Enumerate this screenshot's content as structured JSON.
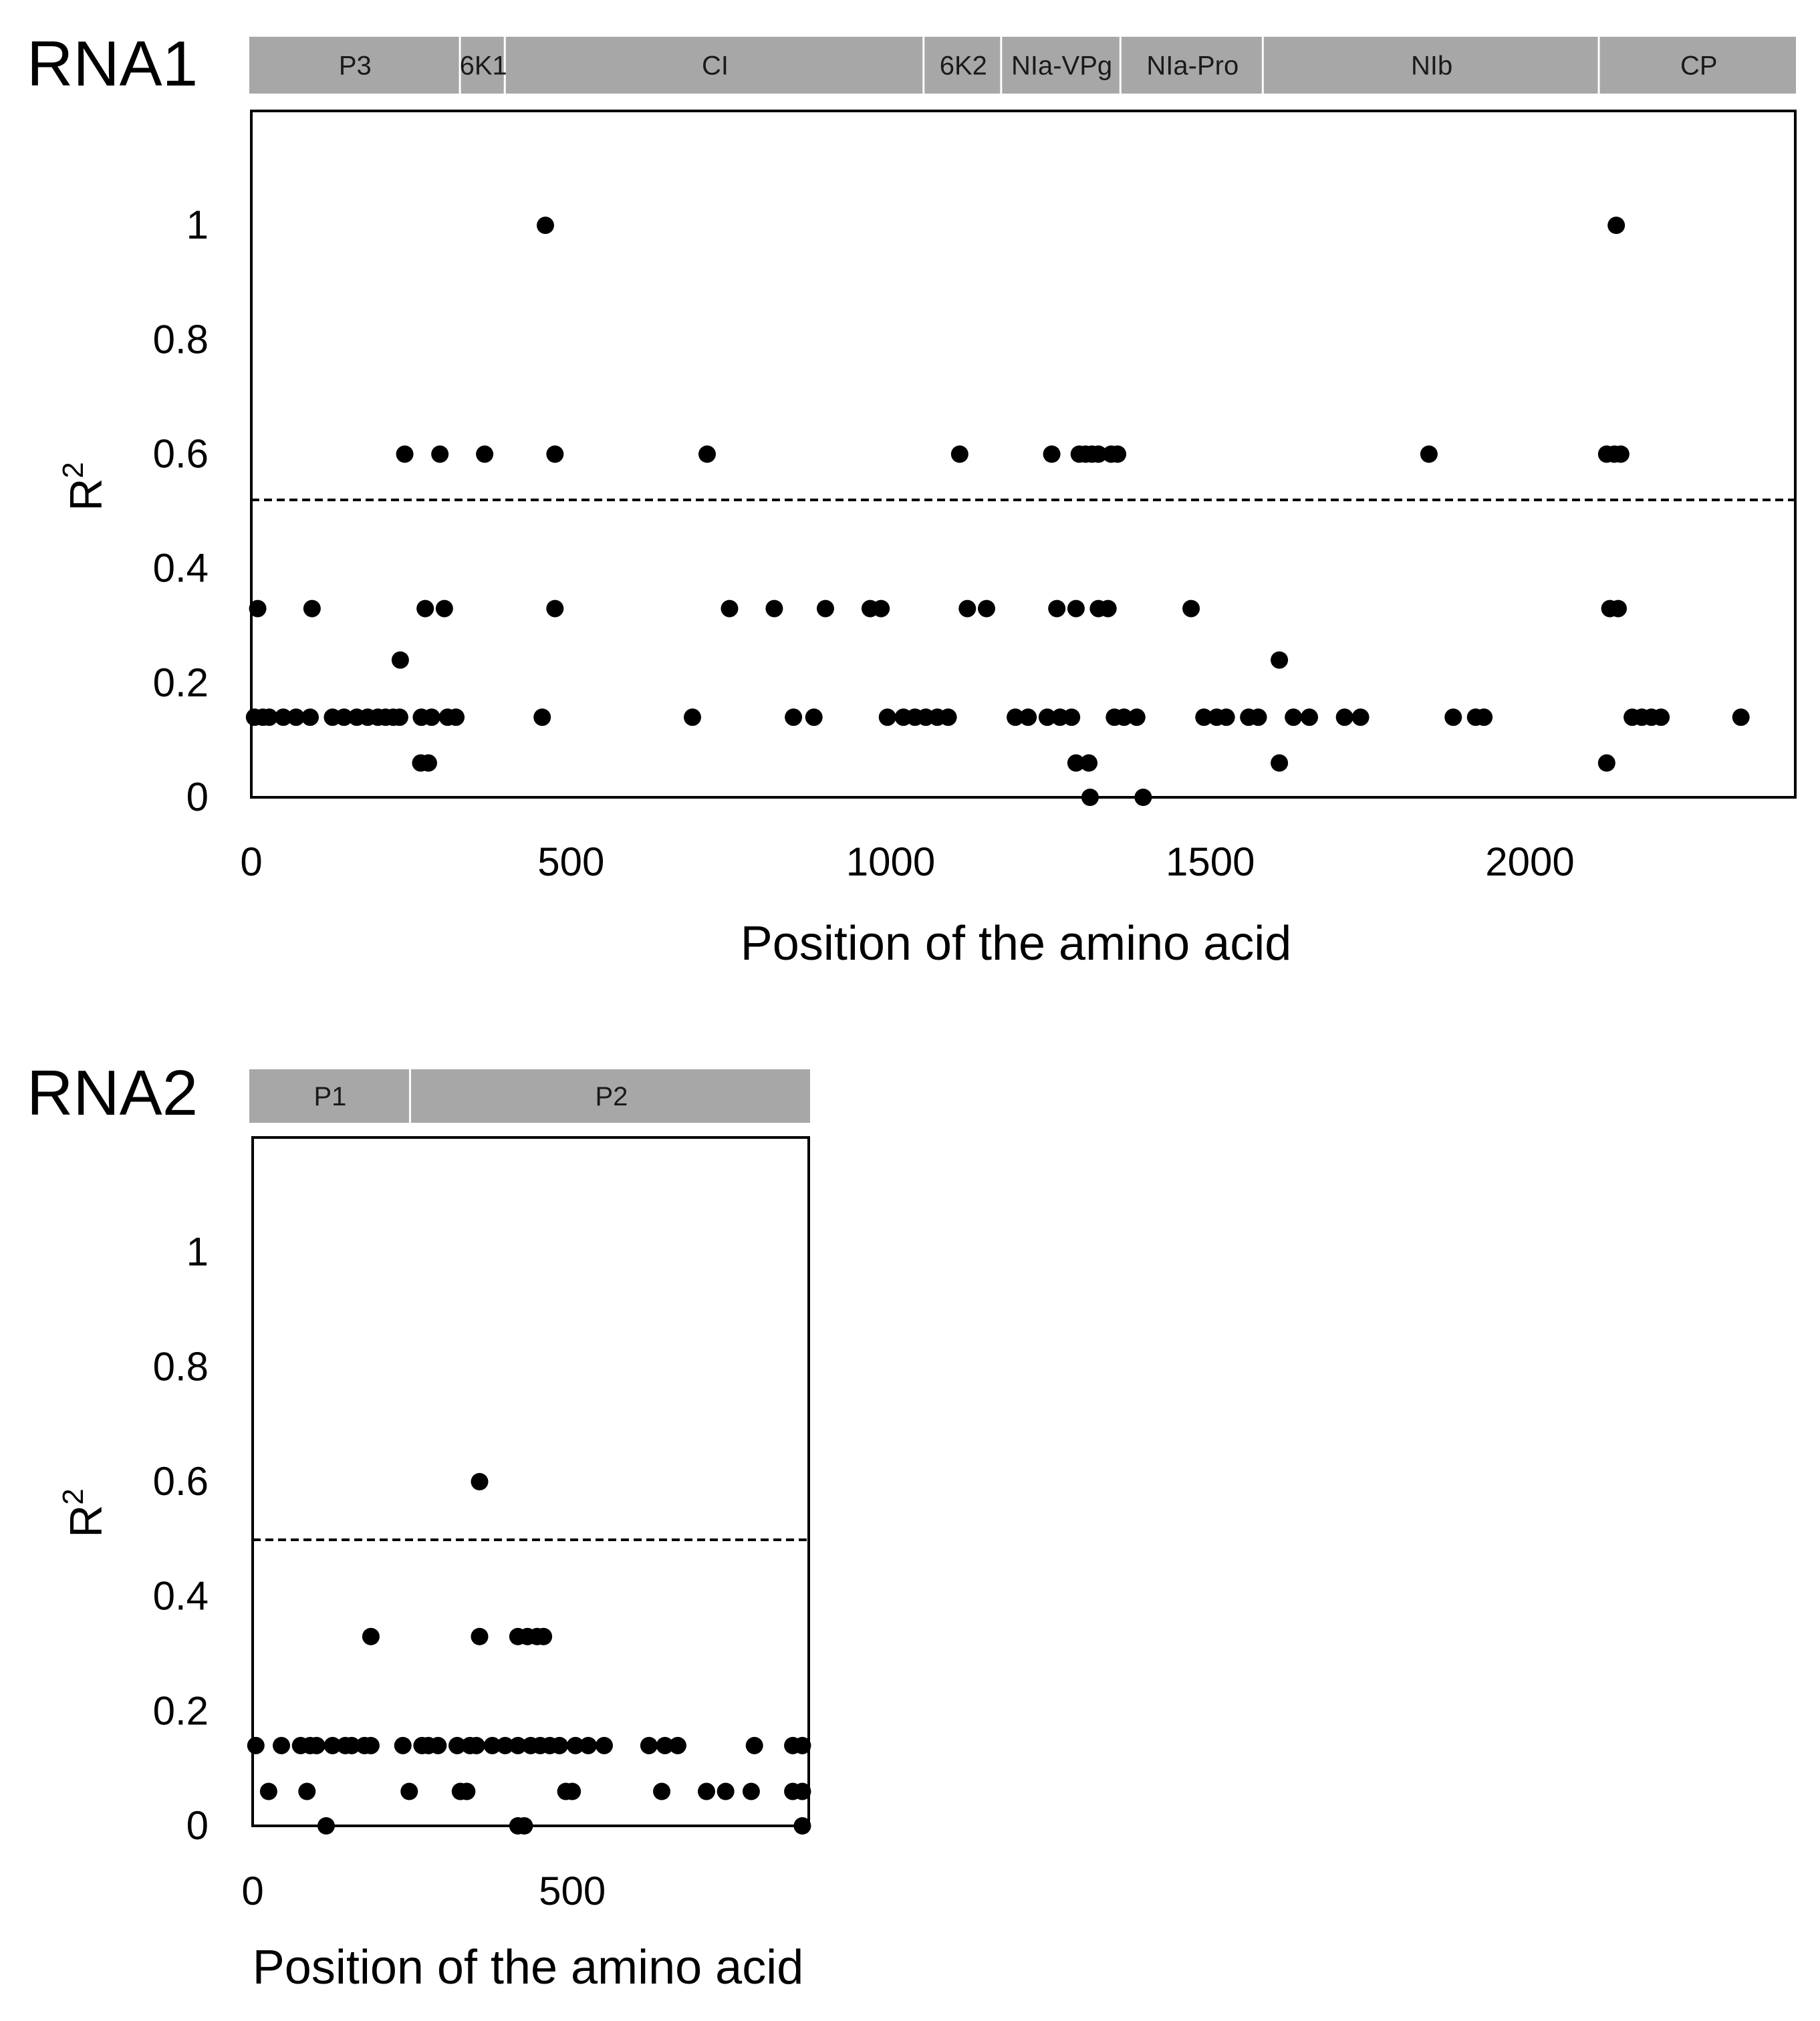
{
  "colors": {
    "band_fill": "#a7a7a7",
    "marker": "#000000",
    "axis": "#000000",
    "threshold": "#000000"
  },
  "chart_data": [
    {
      "type": "scatter",
      "title": "RNA1",
      "xlabel": "Position of the amino acid",
      "ylabel": "R",
      "ylabel_superscript": "2",
      "xlim": [
        0,
        2415
      ],
      "ylim": [
        0,
        1.2
      ],
      "xticks": [
        "0",
        "500",
        "1000",
        "1500",
        "2000"
      ],
      "yticks": [
        "0",
        "0.2",
        "0.4",
        "0.6",
        "0.8",
        "1"
      ],
      "threshold": 0.52,
      "grid": false,
      "legend": "none",
      "regions": [
        {
          "label": "P3",
          "start": 0,
          "end": 330
        },
        {
          "label": "6K1",
          "start": 330,
          "end": 400
        },
        {
          "label": "CI",
          "start": 400,
          "end": 1053
        },
        {
          "label": "6K2",
          "start": 1053,
          "end": 1174
        },
        {
          "label": "NIa-VPg",
          "start": 1174,
          "end": 1360
        },
        {
          "label": "NIa-Pro",
          "start": 1360,
          "end": 1582
        },
        {
          "label": "NIb",
          "start": 1582,
          "end": 2106
        },
        {
          "label": "CP",
          "start": 2106,
          "end": 2415
        }
      ],
      "points": [
        [
          10,
          0.33
        ],
        [
          95,
          0.33
        ],
        [
          240,
          0.6
        ],
        [
          295,
          0.6
        ],
        [
          365,
          0.6
        ],
        [
          460,
          1.0
        ],
        [
          475,
          0.6
        ],
        [
          475,
          0.33
        ],
        [
          272,
          0.33
        ],
        [
          302,
          0.33
        ],
        [
          233,
          0.24
        ],
        [
          265,
          0.06
        ],
        [
          277,
          0.06
        ],
        [
          455,
          0.14
        ],
        [
          5,
          0.14
        ],
        [
          18,
          0.14
        ],
        [
          28,
          0.14
        ],
        [
          50,
          0.14
        ],
        [
          70,
          0.14
        ],
        [
          92,
          0.14
        ],
        [
          127,
          0.14
        ],
        [
          145,
          0.14
        ],
        [
          165,
          0.14
        ],
        [
          182,
          0.14
        ],
        [
          198,
          0.14
        ],
        [
          210,
          0.14
        ],
        [
          222,
          0.14
        ],
        [
          232,
          0.14
        ],
        [
          266,
          0.14
        ],
        [
          282,
          0.14
        ],
        [
          307,
          0.14
        ],
        [
          320,
          0.14
        ],
        [
          690,
          0.14
        ],
        [
          713,
          0.6
        ],
        [
          748,
          0.33
        ],
        [
          818,
          0.33
        ],
        [
          848,
          0.14
        ],
        [
          880,
          0.14
        ],
        [
          898,
          0.33
        ],
        [
          968,
          0.33
        ],
        [
          985,
          0.33
        ],
        [
          995,
          0.14
        ],
        [
          1020,
          0.14
        ],
        [
          1038,
          0.14
        ],
        [
          1055,
          0.14
        ],
        [
          1073,
          0.14
        ],
        [
          1090,
          0.14
        ],
        [
          1108,
          0.6
        ],
        [
          1120,
          0.33
        ],
        [
          1150,
          0.33
        ],
        [
          1195,
          0.14
        ],
        [
          1215,
          0.14
        ],
        [
          1252,
          0.6
        ],
        [
          1245,
          0.14
        ],
        [
          1265,
          0.14
        ],
        [
          1283,
          0.14
        ],
        [
          1260,
          0.33
        ],
        [
          1290,
          0.33
        ],
        [
          1295,
          0.6
        ],
        [
          1305,
          0.6
        ],
        [
          1315,
          0.6
        ],
        [
          1325,
          0.6
        ],
        [
          1345,
          0.6
        ],
        [
          1355,
          0.6
        ],
        [
          1290,
          0.06
        ],
        [
          1310,
          0.06
        ],
        [
          1312,
          0.0
        ],
        [
          1325,
          0.33
        ],
        [
          1340,
          0.33
        ],
        [
          1350,
          0.14
        ],
        [
          1365,
          0.14
        ],
        [
          1385,
          0.14
        ],
        [
          1395,
          0.0
        ],
        [
          1470,
          0.33
        ],
        [
          1490,
          0.14
        ],
        [
          1510,
          0.14
        ],
        [
          1525,
          0.14
        ],
        [
          1560,
          0.14
        ],
        [
          1575,
          0.14
        ],
        [
          1608,
          0.24
        ],
        [
          1608,
          0.06
        ],
        [
          1630,
          0.14
        ],
        [
          1655,
          0.14
        ],
        [
          1710,
          0.14
        ],
        [
          1735,
          0.14
        ],
        [
          1842,
          0.6
        ],
        [
          1880,
          0.14
        ],
        [
          1915,
          0.14
        ],
        [
          1928,
          0.14
        ],
        [
          2120,
          0.6
        ],
        [
          2132,
          0.6
        ],
        [
          2142,
          0.6
        ],
        [
          2125,
          0.33
        ],
        [
          2138,
          0.33
        ],
        [
          2135,
          1.0
        ],
        [
          2120,
          0.06
        ],
        [
          2160,
          0.14
        ],
        [
          2175,
          0.14
        ],
        [
          2190,
          0.14
        ],
        [
          2205,
          0.14
        ],
        [
          2330,
          0.14
        ]
      ]
    },
    {
      "type": "scatter",
      "title": "RNA2",
      "xlabel": "Position of the amino acid",
      "ylabel": "R",
      "ylabel_superscript": "2",
      "xlim": [
        0,
        870
      ],
      "ylim": [
        0,
        1.2
      ],
      "xticks": [
        "0",
        "500"
      ],
      "yticks": [
        "0",
        "0.2",
        "0.4",
        "0.6",
        "0.8",
        "1"
      ],
      "threshold": 0.5,
      "grid": false,
      "legend": "none",
      "regions": [
        {
          "label": "P1",
          "start": 0,
          "end": 250
        },
        {
          "label": "P2",
          "start": 250,
          "end": 870
        }
      ],
      "points": [
        [
          5,
          0.14
        ],
        [
          45,
          0.14
        ],
        [
          75,
          0.14
        ],
        [
          90,
          0.14
        ],
        [
          100,
          0.14
        ],
        [
          125,
          0.14
        ],
        [
          145,
          0.14
        ],
        [
          155,
          0.14
        ],
        [
          175,
          0.14
        ],
        [
          185,
          0.14
        ],
        [
          235,
          0.14
        ],
        [
          265,
          0.14
        ],
        [
          275,
          0.14
        ],
        [
          290,
          0.14
        ],
        [
          320,
          0.14
        ],
        [
          340,
          0.14
        ],
        [
          350,
          0.14
        ],
        [
          375,
          0.14
        ],
        [
          395,
          0.14
        ],
        [
          415,
          0.14
        ],
        [
          435,
          0.14
        ],
        [
          450,
          0.14
        ],
        [
          465,
          0.14
        ],
        [
          480,
          0.14
        ],
        [
          505,
          0.14
        ],
        [
          525,
          0.14
        ],
        [
          550,
          0.14
        ],
        [
          620,
          0.14
        ],
        [
          645,
          0.14
        ],
        [
          665,
          0.14
        ],
        [
          785,
          0.14
        ],
        [
          845,
          0.14
        ],
        [
          860,
          0.14
        ],
        [
          25,
          0.06
        ],
        [
          85,
          0.06
        ],
        [
          245,
          0.06
        ],
        [
          325,
          0.06
        ],
        [
          335,
          0.06
        ],
        [
          490,
          0.06
        ],
        [
          500,
          0.06
        ],
        [
          640,
          0.06
        ],
        [
          710,
          0.06
        ],
        [
          740,
          0.06
        ],
        [
          780,
          0.06
        ],
        [
          845,
          0.06
        ],
        [
          860,
          0.06
        ],
        [
          115,
          0.0
        ],
        [
          415,
          0.0
        ],
        [
          425,
          0.0
        ],
        [
          860,
          0.0
        ],
        [
          185,
          0.33
        ],
        [
          355,
          0.33
        ],
        [
          415,
          0.33
        ],
        [
          430,
          0.33
        ],
        [
          445,
          0.33
        ],
        [
          455,
          0.33
        ],
        [
          355,
          0.6
        ]
      ]
    }
  ]
}
